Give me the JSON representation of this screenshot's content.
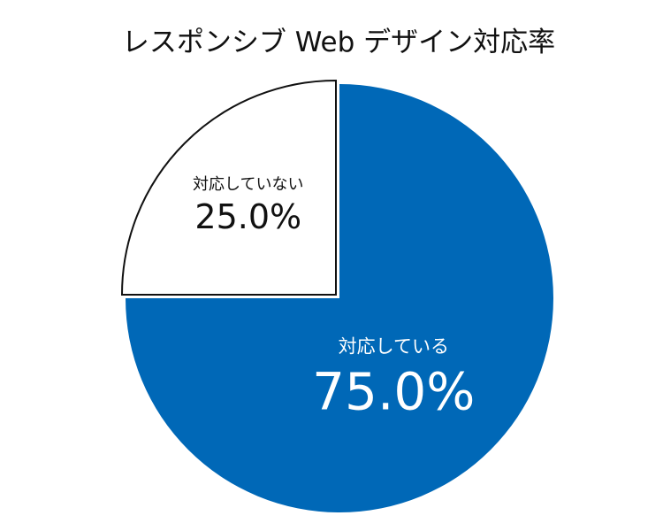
{
  "chart_data": {
    "type": "pie",
    "title": "レスポンシブ Web デザイン対応率",
    "start_angle_deg": 0,
    "direction": "clockwise",
    "slices": [
      {
        "label": "対応している",
        "value": 75.0,
        "value_label": "75.0%",
        "color": "#0068b7"
      },
      {
        "label": "対応していない",
        "value": 25.0,
        "value_label": "25.0%",
        "color": "#ffffff",
        "exploded": true
      }
    ]
  },
  "colors": {
    "accent": "#0068b7",
    "stroke": "#111111",
    "background": "#ffffff"
  }
}
